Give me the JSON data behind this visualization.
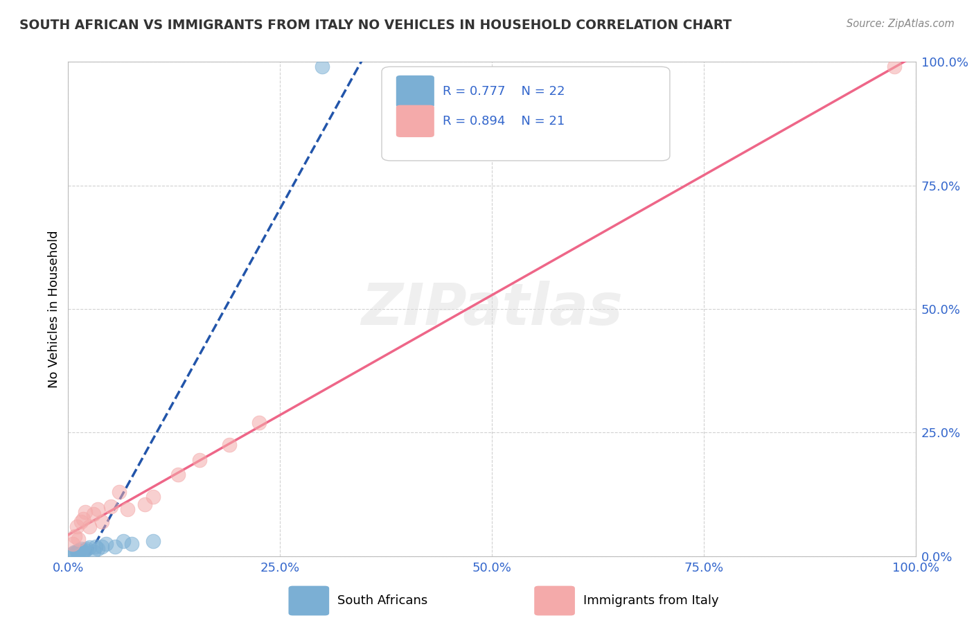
{
  "title": "SOUTH AFRICAN VS IMMIGRANTS FROM ITALY NO VEHICLES IN HOUSEHOLD CORRELATION CHART",
  "source_text": "Source: ZipAtlas.com",
  "ylabel": "No Vehicles in Household",
  "xlim": [
    0,
    1
  ],
  "ylim": [
    0,
    1
  ],
  "x_tick_labels": [
    "0.0%",
    "25.0%",
    "50.0%",
    "75.0%",
    "100.0%"
  ],
  "x_tick_positions": [
    0,
    0.25,
    0.5,
    0.75,
    1.0
  ],
  "y_tick_labels": [
    "0.0%",
    "25.0%",
    "50.0%",
    "75.0%",
    "100.0%"
  ],
  "y_tick_positions": [
    0,
    0.25,
    0.5,
    0.75,
    1.0
  ],
  "south_african_color": "#7BAFD4",
  "italy_color": "#F4AAAA",
  "south_african_line_color": "#2255AA",
  "italy_line_color": "#EE6688",
  "R1": "0.777",
  "N1": "22",
  "R2": "0.894",
  "N2": "21",
  "legend_label1": "South Africans",
  "legend_label2": "Immigrants from Italy",
  "south_african_x": [
    0.005,
    0.007,
    0.008,
    0.01,
    0.012,
    0.013,
    0.015,
    0.015,
    0.018,
    0.02,
    0.022,
    0.025,
    0.03,
    0.032,
    0.035,
    0.04,
    0.045,
    0.055,
    0.065,
    0.075,
    0.1,
    0.3
  ],
  "south_african_y": [
    0.005,
    0.008,
    0.006,
    0.01,
    0.007,
    0.012,
    0.009,
    0.015,
    0.01,
    0.012,
    0.015,
    0.018,
    0.01,
    0.02,
    0.015,
    0.02,
    0.025,
    0.02,
    0.03,
    0.025,
    0.03,
    0.99
  ],
  "italy_x": [
    0.005,
    0.008,
    0.01,
    0.012,
    0.015,
    0.018,
    0.02,
    0.025,
    0.03,
    0.035,
    0.04,
    0.05,
    0.06,
    0.07,
    0.09,
    0.1,
    0.13,
    0.155,
    0.19,
    0.225,
    0.975
  ],
  "italy_y": [
    0.025,
    0.04,
    0.06,
    0.035,
    0.07,
    0.075,
    0.09,
    0.06,
    0.085,
    0.095,
    0.07,
    0.1,
    0.13,
    0.095,
    0.105,
    0.12,
    0.165,
    0.195,
    0.225,
    0.27,
    0.99
  ],
  "watermark_text": "ZIPatlas",
  "background_color": "#FFFFFF",
  "grid_color": "#CCCCCC",
  "tick_color": "#3366CC",
  "title_color": "#333333",
  "source_color": "#888888"
}
